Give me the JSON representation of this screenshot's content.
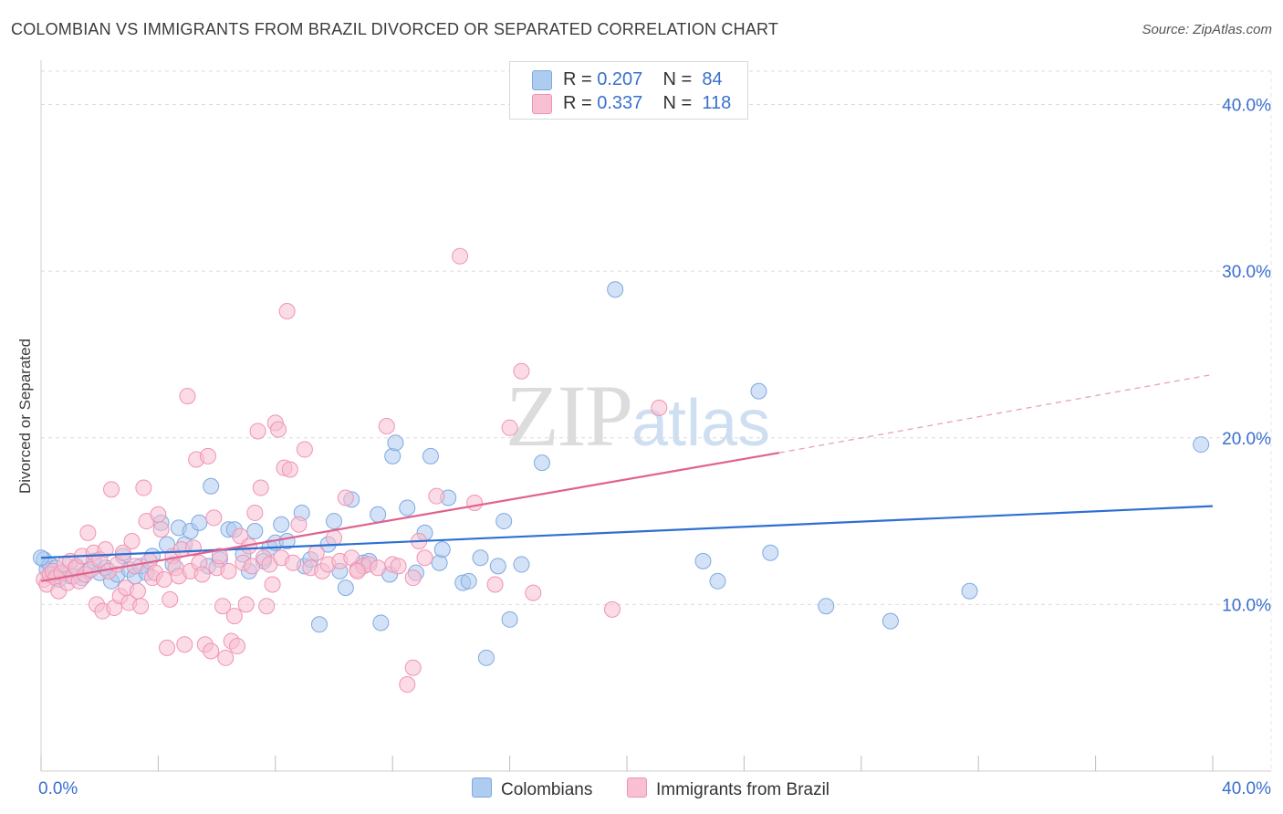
{
  "title": "COLOMBIAN VS IMMIGRANTS FROM BRAZIL DIVORCED OR SEPARATED CORRELATION CHART",
  "source": "Source: ZipAtlas.com",
  "watermark": {
    "zip": "ZIP",
    "atlas": "atlas"
  },
  "legend": {
    "rows": [
      {
        "r_label": "R =",
        "r_value": "0.207",
        "n_label": "N =",
        "n_value": "84",
        "color": "#aecbf0",
        "border": "#7ea9e0"
      },
      {
        "r_label": "R =",
        "r_value": "0.337",
        "n_label": "N =",
        "n_value": "118",
        "color": "#f8c0d2",
        "border": "#ef93b2"
      }
    ]
  },
  "bottom_legend": [
    {
      "label": "Colombians",
      "color": "#aecbf0",
      "border": "#7ea9e0"
    },
    {
      "label": "Immigrants from Brazil",
      "color": "#f8c0d2",
      "border": "#ef93b2"
    }
  ],
  "chart_data": {
    "type": "scatter",
    "title": "COLOMBIAN VS IMMIGRANTS FROM BRAZIL DIVORCED OR SEPARATED CORRELATION CHART",
    "xlabel": "",
    "ylabel": "Divorced or Separated",
    "xlim": [
      0,
      40
    ],
    "ylim": [
      0,
      42
    ],
    "x_tick_labels": [
      "0.0%",
      "40.0%"
    ],
    "y_ticks": [
      10,
      20,
      30,
      40
    ],
    "y_tick_labels": [
      "10.0%",
      "20.0%",
      "30.0%",
      "40.0%"
    ],
    "grid": true,
    "legend_placement": "top-center",
    "series": [
      {
        "name": "Colombians",
        "color": "#7ea9e0",
        "fill": "#aecbf0",
        "trend": {
          "x": [
            0,
            40
          ],
          "y": [
            12.8,
            15.9
          ],
          "color": "#2f6fd1"
        },
        "points": [
          [
            0.1,
            12.7
          ],
          [
            0.2,
            12.1
          ],
          [
            0.3,
            12.4
          ],
          [
            0.4,
            11.8
          ],
          [
            0.5,
            12.2
          ],
          [
            0.6,
            11.5
          ],
          [
            0.8,
            11.9
          ],
          [
            1.0,
            11.7
          ],
          [
            1.2,
            12.3
          ],
          [
            1.4,
            11.6
          ],
          [
            1.6,
            12.0
          ],
          [
            1.8,
            12.6
          ],
          [
            2.0,
            11.9
          ],
          [
            2.2,
            12.2
          ],
          [
            2.4,
            11.4
          ],
          [
            2.6,
            11.8
          ],
          [
            2.8,
            12.9
          ],
          [
            3.0,
            12.1
          ],
          [
            3.2,
            11.7
          ],
          [
            3.4,
            12.3
          ],
          [
            3.6,
            11.9
          ],
          [
            3.8,
            12.9
          ],
          [
            4.1,
            14.9
          ],
          [
            4.3,
            13.6
          ],
          [
            4.5,
            12.4
          ],
          [
            4.7,
            14.6
          ],
          [
            4.9,
            13.6
          ],
          [
            5.1,
            14.4
          ],
          [
            5.4,
            14.9
          ],
          [
            5.7,
            12.3
          ],
          [
            5.8,
            17.1
          ],
          [
            6.1,
            12.7
          ],
          [
            6.4,
            14.5
          ],
          [
            6.6,
            14.5
          ],
          [
            6.9,
            13.0
          ],
          [
            7.1,
            12.0
          ],
          [
            7.3,
            14.4
          ],
          [
            7.6,
            12.6
          ],
          [
            7.8,
            13.4
          ],
          [
            8.0,
            13.7
          ],
          [
            8.2,
            14.8
          ],
          [
            8.4,
            13.8
          ],
          [
            8.9,
            15.5
          ],
          [
            9.0,
            12.3
          ],
          [
            9.2,
            12.7
          ],
          [
            9.5,
            8.8
          ],
          [
            9.8,
            13.6
          ],
          [
            10.0,
            15.0
          ],
          [
            10.2,
            12.0
          ],
          [
            10.4,
            11.0
          ],
          [
            10.6,
            16.3
          ],
          [
            11.0,
            12.5
          ],
          [
            11.2,
            12.6
          ],
          [
            11.5,
            15.4
          ],
          [
            11.6,
            8.9
          ],
          [
            11.9,
            11.8
          ],
          [
            12.0,
            18.9
          ],
          [
            12.1,
            19.7
          ],
          [
            12.5,
            15.8
          ],
          [
            12.8,
            11.9
          ],
          [
            13.1,
            14.3
          ],
          [
            13.3,
            18.9
          ],
          [
            13.6,
            12.5
          ],
          [
            13.7,
            13.3
          ],
          [
            13.9,
            16.4
          ],
          [
            14.4,
            11.3
          ],
          [
            14.6,
            11.4
          ],
          [
            15.0,
            12.8
          ],
          [
            15.2,
            6.8
          ],
          [
            15.6,
            12.3
          ],
          [
            15.8,
            15.0
          ],
          [
            16.0,
            9.1
          ],
          [
            16.4,
            12.4
          ],
          [
            17.1,
            18.5
          ],
          [
            19.6,
            28.9
          ],
          [
            22.6,
            12.6
          ],
          [
            23.1,
            11.4
          ],
          [
            24.5,
            22.8
          ],
          [
            24.9,
            13.1
          ],
          [
            26.8,
            9.9
          ],
          [
            29.0,
            9.0
          ],
          [
            31.7,
            10.8
          ],
          [
            39.6,
            19.6
          ],
          [
            0.0,
            12.8
          ]
        ]
      },
      {
        "name": "Immigrants from Brazil",
        "color": "#ef93b2",
        "fill": "#f8c0d2",
        "trend": {
          "x": [
            0,
            25.2
          ],
          "y": [
            11.4,
            19.1
          ],
          "color": "#e0628e"
        },
        "trend_dashed": {
          "x": [
            25.2,
            40
          ],
          "y": [
            19.1,
            23.8
          ],
          "color": "#e8a0b9"
        },
        "points": [
          [
            0.1,
            11.5
          ],
          [
            0.2,
            11.2
          ],
          [
            0.3,
            11.8
          ],
          [
            0.4,
            12.0
          ],
          [
            0.5,
            11.6
          ],
          [
            0.6,
            10.8
          ],
          [
            0.7,
            11.9
          ],
          [
            0.8,
            12.4
          ],
          [
            0.9,
            11.3
          ],
          [
            1.0,
            12.6
          ],
          [
            1.1,
            11.7
          ],
          [
            1.2,
            12.2
          ],
          [
            1.3,
            11.4
          ],
          [
            1.4,
            12.9
          ],
          [
            1.5,
            11.8
          ],
          [
            1.6,
            14.3
          ],
          [
            1.7,
            12.1
          ],
          [
            1.8,
            13.1
          ],
          [
            1.9,
            10.0
          ],
          [
            2.0,
            12.7
          ],
          [
            2.1,
            9.6
          ],
          [
            2.2,
            13.3
          ],
          [
            2.3,
            12.0
          ],
          [
            2.4,
            16.9
          ],
          [
            2.5,
            9.8
          ],
          [
            2.6,
            12.4
          ],
          [
            2.7,
            10.5
          ],
          [
            2.8,
            13.1
          ],
          [
            2.9,
            11.0
          ],
          [
            3.0,
            10.1
          ],
          [
            3.1,
            13.8
          ],
          [
            3.2,
            12.3
          ],
          [
            3.3,
            10.8
          ],
          [
            3.4,
            9.9
          ],
          [
            3.5,
            17.0
          ],
          [
            3.6,
            15.0
          ],
          [
            3.7,
            12.6
          ],
          [
            3.8,
            11.6
          ],
          [
            3.9,
            11.9
          ],
          [
            4.0,
            15.4
          ],
          [
            4.1,
            14.5
          ],
          [
            4.2,
            11.5
          ],
          [
            4.3,
            7.4
          ],
          [
            4.4,
            10.3
          ],
          [
            4.5,
            12.9
          ],
          [
            4.6,
            12.2
          ],
          [
            4.7,
            11.7
          ],
          [
            4.8,
            13.3
          ],
          [
            4.9,
            7.6
          ],
          [
            5.0,
            22.5
          ],
          [
            5.1,
            12.0
          ],
          [
            5.2,
            13.4
          ],
          [
            5.3,
            18.7
          ],
          [
            5.4,
            12.5
          ],
          [
            5.5,
            11.8
          ],
          [
            5.6,
            7.6
          ],
          [
            5.7,
            18.9
          ],
          [
            5.8,
            7.2
          ],
          [
            5.9,
            15.2
          ],
          [
            6.0,
            12.2
          ],
          [
            6.1,
            12.9
          ],
          [
            6.2,
            9.9
          ],
          [
            6.3,
            6.8
          ],
          [
            6.4,
            12.0
          ],
          [
            6.5,
            7.8
          ],
          [
            6.6,
            9.3
          ],
          [
            6.7,
            7.5
          ],
          [
            6.8,
            14.1
          ],
          [
            6.9,
            12.5
          ],
          [
            7.0,
            10.0
          ],
          [
            7.1,
            13.5
          ],
          [
            7.2,
            12.3
          ],
          [
            7.3,
            15.5
          ],
          [
            7.4,
            20.4
          ],
          [
            7.5,
            17.0
          ],
          [
            7.6,
            12.8
          ],
          [
            7.7,
            9.9
          ],
          [
            7.8,
            12.4
          ],
          [
            7.9,
            11.2
          ],
          [
            8.0,
            20.9
          ],
          [
            8.1,
            20.5
          ],
          [
            8.2,
            12.8
          ],
          [
            8.3,
            18.2
          ],
          [
            8.4,
            27.6
          ],
          [
            8.5,
            18.1
          ],
          [
            8.6,
            12.5
          ],
          [
            8.8,
            14.8
          ],
          [
            9.0,
            19.3
          ],
          [
            9.2,
            12.2
          ],
          [
            9.4,
            13.1
          ],
          [
            9.6,
            12.0
          ],
          [
            9.8,
            12.4
          ],
          [
            10.0,
            14.0
          ],
          [
            10.2,
            12.6
          ],
          [
            10.4,
            16.4
          ],
          [
            10.6,
            12.8
          ],
          [
            10.8,
            12.1
          ],
          [
            11.0,
            12.3
          ],
          [
            11.2,
            12.4
          ],
          [
            11.5,
            12.2
          ],
          [
            11.8,
            20.7
          ],
          [
            12.0,
            12.4
          ],
          [
            12.2,
            12.3
          ],
          [
            12.5,
            5.2
          ],
          [
            12.7,
            6.2
          ],
          [
            12.9,
            13.8
          ],
          [
            13.1,
            12.8
          ],
          [
            13.5,
            16.5
          ],
          [
            14.3,
            30.9
          ],
          [
            14.8,
            16.1
          ],
          [
            15.5,
            11.2
          ],
          [
            16.0,
            20.6
          ],
          [
            16.4,
            24.0
          ],
          [
            16.8,
            10.7
          ],
          [
            19.5,
            9.7
          ],
          [
            21.1,
            21.8
          ],
          [
            12.7,
            11.6
          ],
          [
            10.8,
            12.0
          ]
        ]
      }
    ]
  }
}
